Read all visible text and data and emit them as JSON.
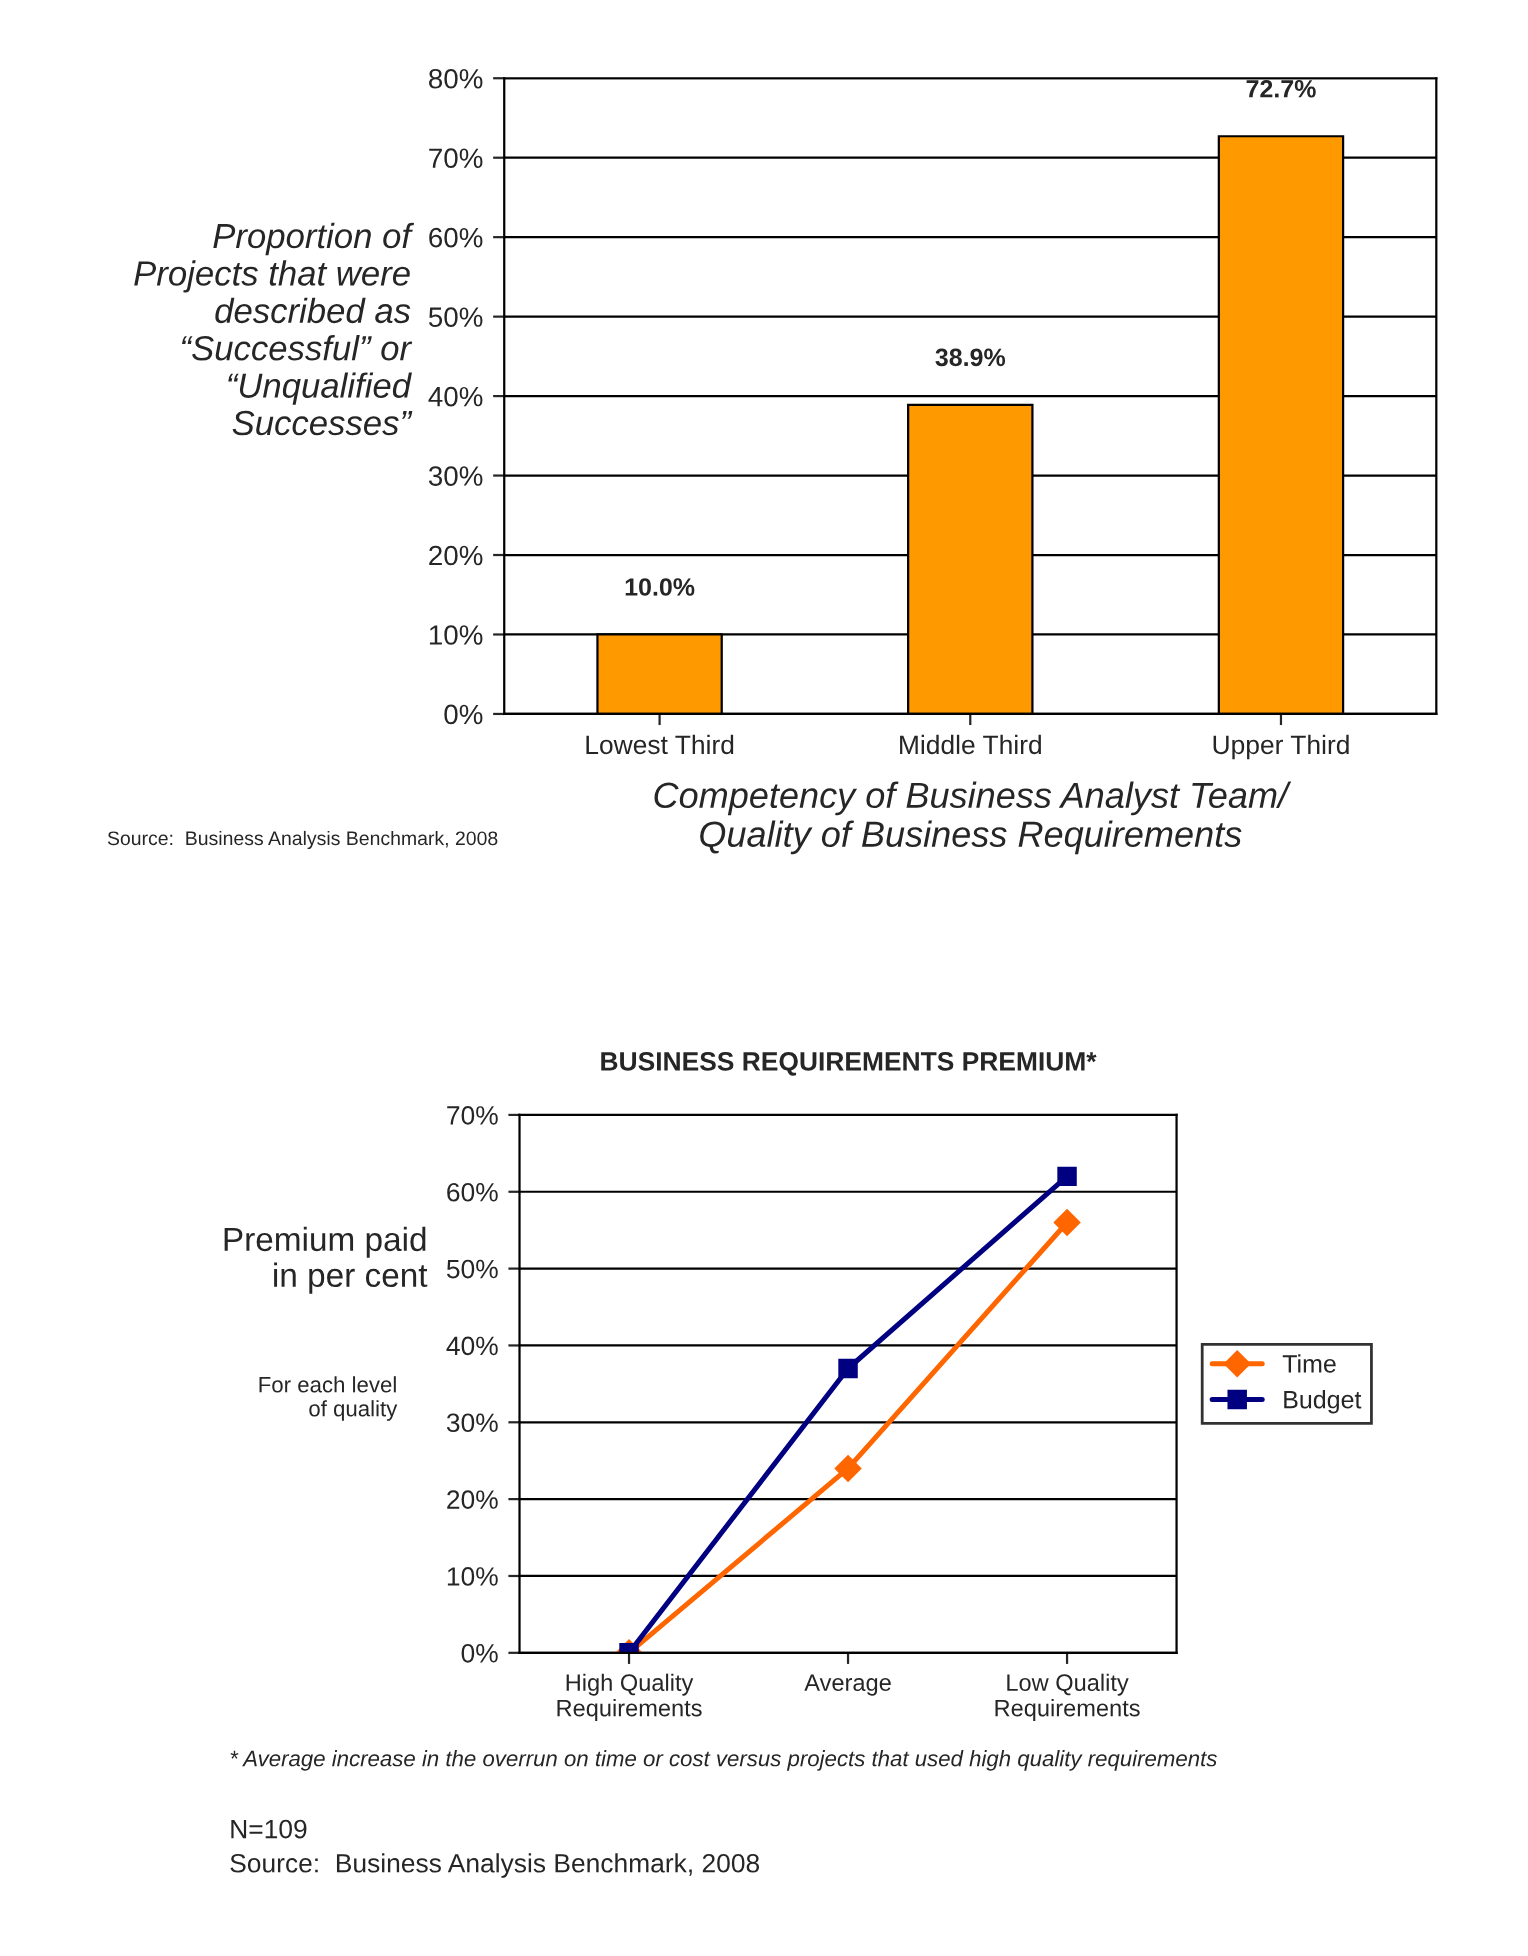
{
  "chart_data": [
    {
      "type": "bar",
      "categories": [
        "Lowest Third",
        "Middle Third",
        "Upper Third"
      ],
      "values": [
        10.0,
        38.9,
        72.7
      ],
      "color": "#ff9900",
      "value_labels": [
        "10.0%",
        "38.9%",
        "72.7%"
      ],
      "ylabel": "Proportion of\nProjects that were\ndescribed as\n“Successful” or\n“Unqualified\nSuccesses”",
      "xlabel": "Competency of Business Analyst Team/\nQuality of Business Requirements",
      "ylim": [
        0,
        80
      ],
      "yticks": [
        {
          "value": 0,
          "label": "0%"
        },
        {
          "value": 10,
          "label": "10%"
        },
        {
          "value": 20,
          "label": "20%"
        },
        {
          "value": 30,
          "label": "30%"
        },
        {
          "value": 40,
          "label": "40%"
        },
        {
          "value": 50,
          "label": "50%"
        },
        {
          "value": 60,
          "label": "60%"
        },
        {
          "value": 70,
          "label": "70%"
        },
        {
          "value": 80,
          "label": "80%"
        }
      ],
      "grid": "y",
      "annotations": [
        "Source:  Business Analysis Benchmark, 2008"
      ]
    },
    {
      "type": "line",
      "title": "BUSINESS REQUIREMENTS PREMIUM*",
      "categories": [
        "High Quality\nRequirements",
        "Average",
        "Low Quality\nRequirements"
      ],
      "series": [
        {
          "name": "Time",
          "color": "#ff6600",
          "values": [
            0,
            24,
            56
          ],
          "marker": "diamond"
        },
        {
          "name": "Budget",
          "color": "#000080",
          "values": [
            0,
            37,
            62
          ],
          "marker": "square"
        }
      ],
      "ylabel": "Premium paid\nin per cent",
      "ylim": [
        0,
        70
      ],
      "yticks": [
        {
          "value": 0,
          "label": "0%"
        },
        {
          "value": 10,
          "label": "10%"
        },
        {
          "value": 20,
          "label": "20%"
        },
        {
          "value": 30,
          "label": "30%"
        },
        {
          "value": 40,
          "label": "40%"
        },
        {
          "value": 50,
          "label": "50%"
        },
        {
          "value": 60,
          "label": "60%"
        },
        {
          "value": 70,
          "label": "70%"
        }
      ],
      "grid": "y",
      "legend": "right",
      "line_style": "solid",
      "annotations": [
        "For each level\nof quality",
        "* Average increase in the overrun on time or cost versus projects that used high quality requirements",
        "N=109\nSource:  Business Analysis Benchmark, 2008"
      ]
    }
  ]
}
